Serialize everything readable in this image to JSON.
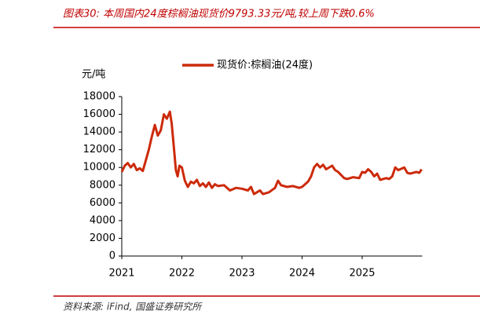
{
  "chart_data": {
    "type": "line",
    "title": "图表30:  本周国内24度棕榈油现货价9793.33元/吨,较上周下跌0.6%",
    "y_label": "元/吨",
    "source": "资料来源:  iFind,  国盛证券研究所",
    "x": [
      2021.0,
      2021.05,
      2021.1,
      2021.15,
      2021.2,
      2021.25,
      2021.3,
      2021.35,
      2021.4,
      2021.45,
      2021.5,
      2021.55,
      2021.6,
      2021.65,
      2021.7,
      2021.75,
      2021.8,
      2021.83,
      2021.87,
      2021.9,
      2021.93,
      2021.96,
      2022.0,
      2022.05,
      2022.1,
      2022.15,
      2022.2,
      2022.25,
      2022.3,
      2022.35,
      2022.4,
      2022.45,
      2022.5,
      2022.55,
      2022.6,
      2022.7,
      2022.8,
      2022.9,
      2023.0,
      2023.1,
      2023.15,
      2023.2,
      2023.25,
      2023.3,
      2023.35,
      2023.45,
      2023.55,
      2023.6,
      2023.65,
      2023.75,
      2023.85,
      2023.95,
      2024.0,
      2024.1,
      2024.15,
      2024.2,
      2024.25,
      2024.3,
      2024.35,
      2024.4,
      2024.5,
      2024.55,
      2024.6,
      2024.7,
      2024.75,
      2024.85,
      2024.95,
      2025.0,
      2025.05,
      2025.1,
      2025.15,
      2025.2,
      2025.25,
      2025.3,
      2025.4,
      2025.45,
      2025.5,
      2025.55,
      2025.6,
      2025.7,
      2025.75,
      2025.8,
      2025.9,
      2025.95,
      2025.99
    ],
    "series": [
      {
        "name": "现货价:棕榈油(24度)",
        "color": "#cc2a0a",
        "values": [
          9500,
          10200,
          10500,
          10000,
          10400,
          9700,
          9900,
          9600,
          10800,
          12000,
          13500,
          14800,
          13600,
          14200,
          16000,
          15500,
          16300,
          15000,
          12000,
          9700,
          9000,
          10200,
          10000,
          8500,
          7800,
          8400,
          8200,
          8600,
          7900,
          8200,
          7800,
          8300,
          7700,
          8100,
          7900,
          8000,
          7400,
          7700,
          7600,
          7400,
          7800,
          7000,
          7200,
          7400,
          7000,
          7200,
          7700,
          8500,
          8000,
          7800,
          7900,
          7700,
          7800,
          8400,
          9000,
          10000,
          10400,
          10000,
          10300,
          9800,
          10200,
          9700,
          9500,
          8800,
          8700,
          8900,
          8800,
          9500,
          9400,
          9800,
          9500,
          9000,
          9300,
          8600,
          8800,
          8700,
          9000,
          10000,
          9700,
          10000,
          9400,
          9300,
          9500,
          9400,
          9793
        ]
      }
    ],
    "xlim": [
      2021,
      2026
    ],
    "xticks": [
      2021,
      2022,
      2023,
      2024,
      2025
    ],
    "ylim": [
      0,
      18000
    ],
    "yticks": [
      0,
      2000,
      4000,
      6000,
      8000,
      10000,
      12000,
      14000,
      16000,
      18000
    ],
    "grid": false
  }
}
